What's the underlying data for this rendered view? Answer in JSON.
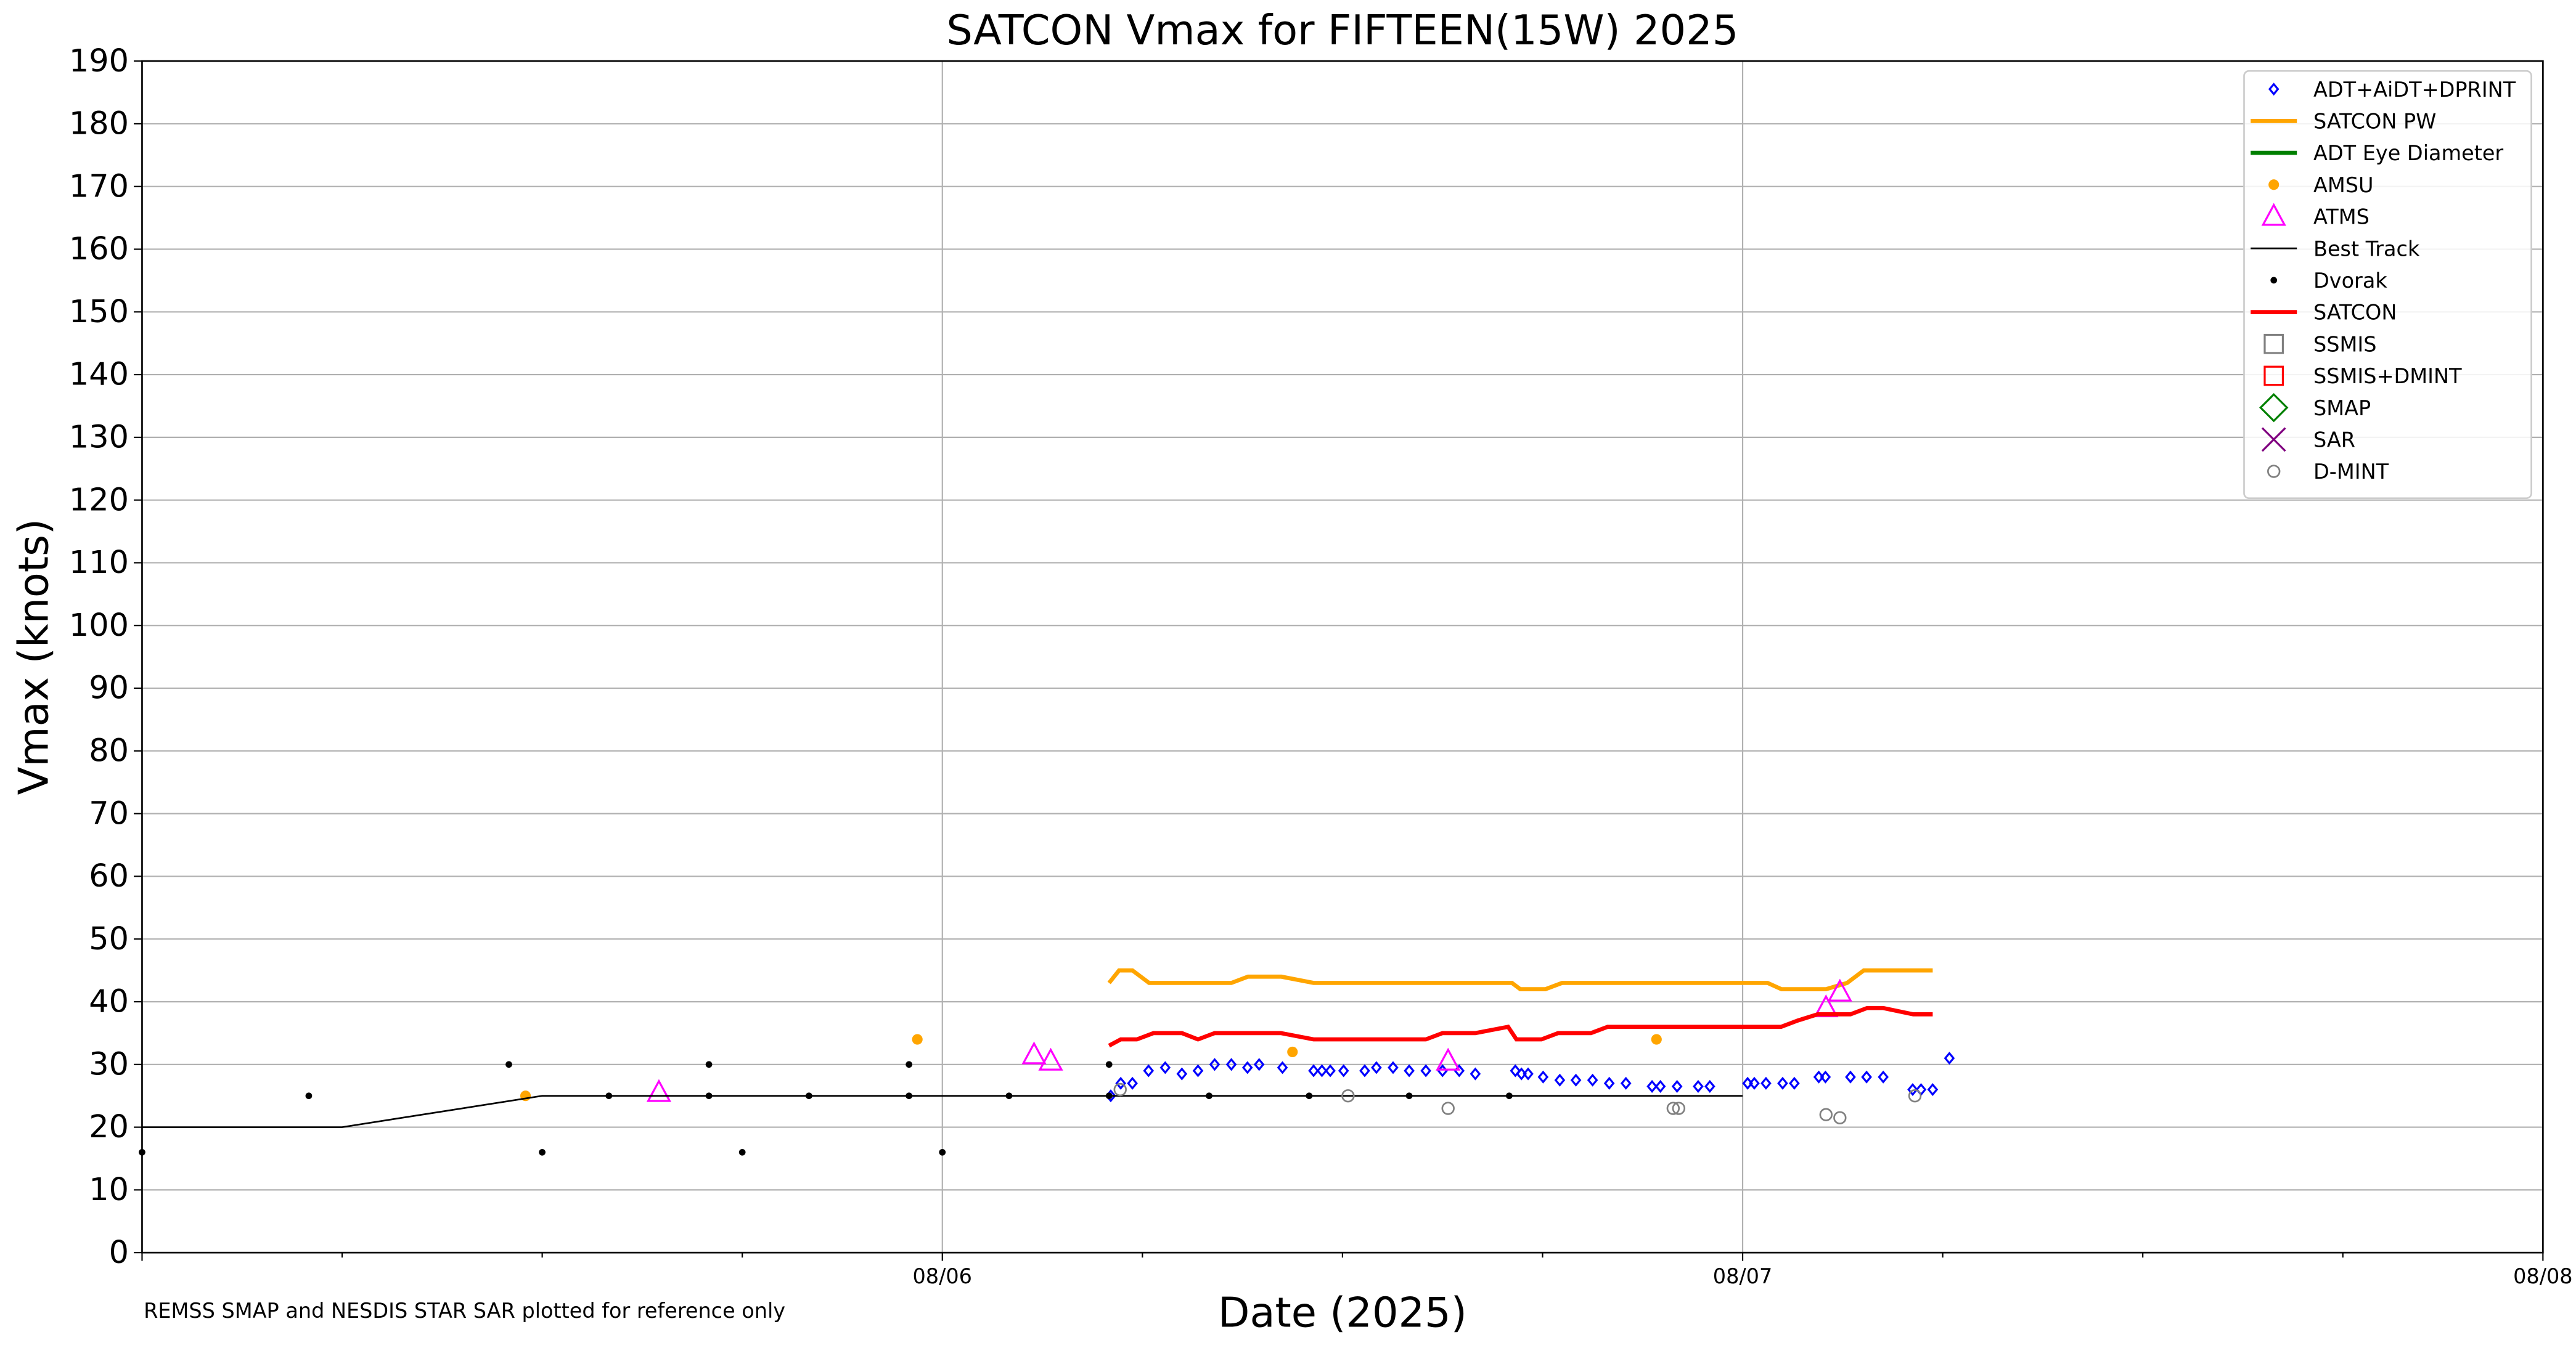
{
  "chart_data": {
    "type": "line",
    "title": "SATCON Vmax for FIFTEEN(15W) 2025",
    "x_label": "Date (2025)",
    "y_label": "Vmax (knots)",
    "footnote": "REMSS SMAP and NESDIS STAR SAR plotted for reference only",
    "grid": true,
    "legend": "upper right",
    "xlim": [
      "2025-08-05T00:00",
      "2025-08-08T00:00"
    ],
    "xticks": [
      {
        "value": "2025-08-05T00:00",
        "label": null
      },
      {
        "value": "2025-08-05T06:00",
        "label": null
      },
      {
        "value": "2025-08-05T12:00",
        "label": null
      },
      {
        "value": "2025-08-05T18:00",
        "label": null
      },
      {
        "value": "2025-08-06T00:00",
        "label": "08/06"
      },
      {
        "value": "2025-08-06T06:00",
        "label": null
      },
      {
        "value": "2025-08-06T12:00",
        "label": null
      },
      {
        "value": "2025-08-06T18:00",
        "label": null
      },
      {
        "value": "2025-08-07T00:00",
        "label": "08/07"
      },
      {
        "value": "2025-08-07T06:00",
        "label": null
      },
      {
        "value": "2025-08-07T12:00",
        "label": null
      },
      {
        "value": "2025-08-07T18:00",
        "label": null
      },
      {
        "value": "2025-08-08T00:00",
        "label": "08/08"
      }
    ],
    "ylim": [
      0,
      190
    ],
    "yticks": [
      0,
      10,
      20,
      30,
      40,
      50,
      60,
      70,
      80,
      90,
      100,
      110,
      120,
      130,
      140,
      150,
      160,
      170,
      180,
      190
    ],
    "series": [
      {
        "name": "ADT+AiDT+DPRINT",
        "color": "#0000ff",
        "marker": "diamond",
        "x": [
          "2025-08-06T05:03",
          "2025-08-06T05:21",
          "2025-08-06T05:42",
          "2025-08-06T06:11",
          "2025-08-06T06:41",
          "2025-08-06T07:11",
          "2025-08-06T07:40",
          "2025-08-06T08:10",
          "2025-08-06T08:40",
          "2025-08-06T09:09",
          "2025-08-06T09:30",
          "2025-08-06T10:12",
          "2025-08-06T11:08",
          "2025-08-06T11:23",
          "2025-08-06T11:38",
          "2025-08-06T12:02",
          "2025-08-06T12:40",
          "2025-08-06T13:01",
          "2025-08-06T13:31",
          "2025-08-06T14:00",
          "2025-08-06T14:30",
          "2025-08-06T15:00",
          "2025-08-06T15:30",
          "2025-08-06T15:59",
          "2025-08-06T17:11",
          "2025-08-06T17:22",
          "2025-08-06T17:34",
          "2025-08-06T18:01",
          "2025-08-06T18:31",
          "2025-08-06T19:00",
          "2025-08-06T19:30",
          "2025-08-06T20:00",
          "2025-08-06T20:30",
          "2025-08-06T21:17",
          "2025-08-06T21:32",
          "2025-08-06T22:02",
          "2025-08-06T22:40",
          "2025-08-06T23:01",
          "2025-08-07T00:09",
          "2025-08-07T00:21",
          "2025-08-07T00:42",
          "2025-08-07T01:12",
          "2025-08-07T01:33",
          "2025-08-07T02:17",
          "2025-08-07T02:29",
          "2025-08-07T03:14",
          "2025-08-07T03:43",
          "2025-08-07T04:13",
          "2025-08-07T05:06",
          "2025-08-07T05:21",
          "2025-08-07T05:42",
          "2025-08-07T06:12"
        ],
        "values": [
          25,
          27,
          27,
          29,
          29.5,
          28.5,
          29,
          30,
          30,
          29.5,
          30,
          29.5,
          29,
          29,
          29,
          29,
          29,
          29.5,
          29.5,
          29,
          29,
          29,
          29,
          28.5,
          29,
          28.5,
          28.5,
          28,
          27.5,
          27.5,
          27.5,
          27,
          27,
          26.5,
          26.5,
          26.5,
          26.5,
          26.5,
          27,
          27,
          27,
          27,
          27,
          28,
          28,
          28,
          28,
          28,
          26,
          26,
          26,
          31
        ]
      },
      {
        "name": "SATCON PW",
        "color": "#ffa500",
        "marker": "line",
        "width": 2.5,
        "x": [
          "2025-08-06T05:00",
          "2025-08-06T05:18",
          "2025-08-06T05:42",
          "2025-08-06T06:12",
          "2025-08-06T08:40",
          "2025-08-06T09:10",
          "2025-08-06T10:10",
          "2025-08-06T11:08",
          "2025-08-06T17:05",
          "2025-08-06T17:20",
          "2025-08-06T18:05",
          "2025-08-06T18:35",
          "2025-08-07T00:45",
          "2025-08-07T01:10",
          "2025-08-07T02:30",
          "2025-08-07T03:08",
          "2025-08-07T03:38",
          "2025-08-07T05:42"
        ],
        "values": [
          43,
          45,
          45,
          43,
          43,
          44,
          44,
          43,
          43,
          42,
          42,
          43,
          43,
          42,
          42,
          43,
          45,
          45
        ]
      },
      {
        "name": "ADT Eye Diameter",
        "color": "#008000",
        "marker": "line",
        "width": 2.5,
        "x": [],
        "values": []
      },
      {
        "name": "AMSU",
        "color": "#ffa500",
        "marker": "dot",
        "x": [
          "2025-08-05T11:30",
          "2025-08-05T23:15",
          "2025-08-06T10:30",
          "2025-08-06T21:25"
        ],
        "values": [
          25,
          34,
          32,
          34
        ]
      },
      {
        "name": "ATMS",
        "color": "#ff00ff",
        "marker": "triangle",
        "x": [
          "2025-08-05T15:30",
          "2025-08-06T02:45",
          "2025-08-06T03:15",
          "2025-08-06T15:10",
          "2025-08-07T02:30",
          "2025-08-07T02:55"
        ],
        "values": [
          25.5,
          31.5,
          30.5,
          30.5,
          39,
          41.5
        ]
      },
      {
        "name": "Best Track",
        "color": "#000000",
        "marker": "line",
        "width": 1,
        "x": [
          "2025-08-05T00:00",
          "2025-08-05T06:00",
          "2025-08-05T12:00",
          "2025-08-05T18:00",
          "2025-08-06T00:00",
          "2025-08-06T06:00",
          "2025-08-06T12:00",
          "2025-08-06T18:00",
          "2025-08-07T00:00"
        ],
        "values": [
          20,
          20,
          25,
          25,
          25,
          25,
          25,
          25,
          25
        ]
      },
      {
        "name": "Dvorak",
        "color": "#000000",
        "marker": "smalldot",
        "x": [
          "2025-08-05T00:00",
          "2025-08-05T05:00",
          "2025-08-05T11:00",
          "2025-08-05T12:00",
          "2025-08-05T14:00",
          "2025-08-05T17:00",
          "2025-08-05T17:00",
          "2025-08-05T18:00",
          "2025-08-05T20:00",
          "2025-08-05T23:00",
          "2025-08-05T23:00",
          "2025-08-06T00:00",
          "2025-08-06T02:00",
          "2025-08-06T05:00",
          "2025-08-06T05:00",
          "2025-08-06T08:00",
          "2025-08-06T11:00",
          "2025-08-06T14:00",
          "2025-08-06T17:00"
        ],
        "values": [
          16,
          25,
          30,
          16,
          25,
          30,
          25,
          16,
          25,
          30,
          25,
          16,
          25,
          30,
          25,
          25,
          25,
          25,
          25
        ]
      },
      {
        "name": "SATCON",
        "color": "#ff0000",
        "marker": "line",
        "width": 2.5,
        "x": [
          "2025-08-06T05:00",
          "2025-08-06T05:21",
          "2025-08-06T05:50",
          "2025-08-06T06:20",
          "2025-08-06T07:11",
          "2025-08-06T07:40",
          "2025-08-06T08:10",
          "2025-08-06T10:09",
          "2025-08-06T11:08",
          "2025-08-06T14:30",
          "2025-08-06T15:00",
          "2025-08-06T15:59",
          "2025-08-06T16:58",
          "2025-08-06T17:13",
          "2025-08-06T17:58",
          "2025-08-06T18:28",
          "2025-08-06T19:27",
          "2025-08-06T19:57",
          "2025-08-07T01:09",
          "2025-08-07T01:39",
          "2025-08-07T02:15",
          "2025-08-07T03:14",
          "2025-08-07T03:44",
          "2025-08-07T04:13",
          "2025-08-07T05:07",
          "2025-08-07T05:42"
        ],
        "values": [
          33,
          34,
          34,
          35,
          35,
          34,
          35,
          35,
          34,
          34,
          35,
          35,
          36,
          34,
          34,
          35,
          35,
          36,
          36,
          37,
          38,
          38,
          39,
          39,
          38,
          38
        ]
      },
      {
        "name": "SSMIS",
        "color": "#808080",
        "marker": "square",
        "x": [],
        "values": []
      },
      {
        "name": "SSMIS+DMINT",
        "color": "#ff0000",
        "marker": "square",
        "x": [],
        "values": []
      },
      {
        "name": "SMAP",
        "color": "#008000",
        "marker": "bigdiamond",
        "x": [],
        "values": []
      },
      {
        "name": "SAR",
        "color": "#800080",
        "marker": "cross",
        "x": [],
        "values": []
      },
      {
        "name": "D-MINT",
        "color": "#808080",
        "marker": "circle",
        "x": [
          "2025-08-06T05:20",
          "2025-08-06T12:10",
          "2025-08-06T15:10",
          "2025-08-06T21:55",
          "2025-08-06T22:05",
          "2025-08-07T02:30",
          "2025-08-07T02:55",
          "2025-08-07T05:10"
        ],
        "values": [
          26,
          25,
          23,
          23,
          23,
          22,
          21.5,
          25
        ]
      }
    ]
  }
}
